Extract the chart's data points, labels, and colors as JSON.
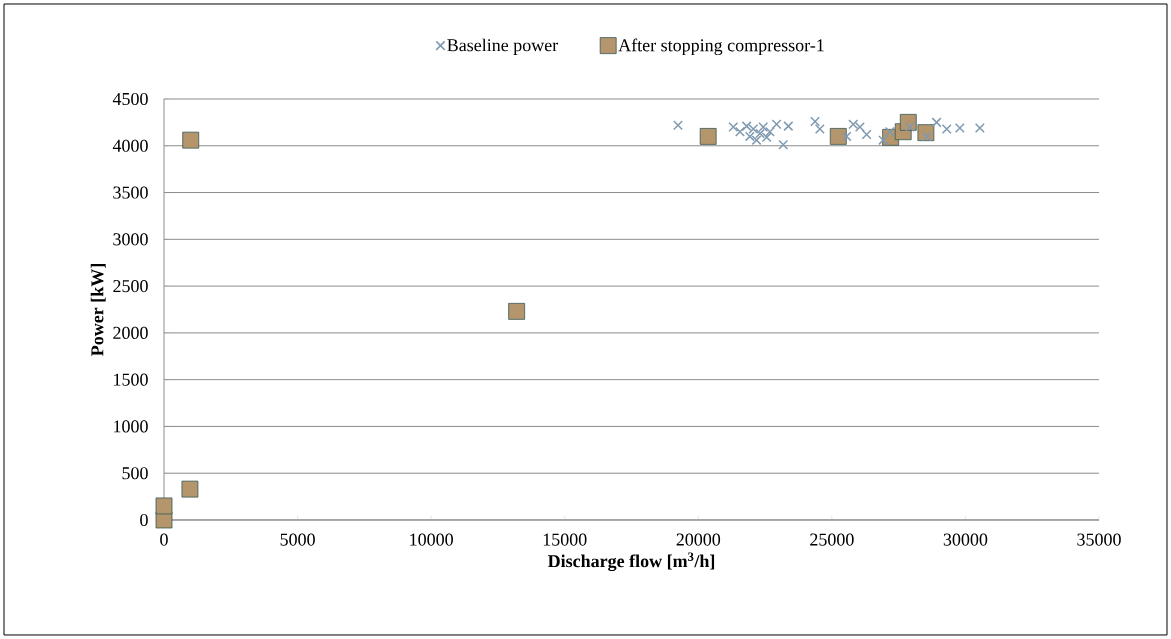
{
  "chart_data": {
    "type": "scatter",
    "xlabel": "Discharge flow [m$^{3}$/h]",
    "ylabel": "Power [kW]",
    "xlim": [
      0,
      35000
    ],
    "xticks": [
      0,
      5000,
      10000,
      15000,
      20000,
      25000,
      30000,
      35000
    ],
    "ylim": [
      0,
      4500
    ],
    "yticks": [
      0,
      500,
      1000,
      1500,
      2000,
      2500,
      3000,
      3500,
      4000,
      4500
    ],
    "grid": "y",
    "legend": "top",
    "series": [
      {
        "name": "Baseline power",
        "color": "#7f99b0",
        "marker": "cross",
        "x": [
          19240,
          21310,
          21560,
          21810,
          21930,
          22060,
          22180,
          22310,
          22430,
          22560,
          22680,
          22930,
          23180,
          23370,
          24370,
          24550,
          25550,
          25800,
          26050,
          26300,
          26920,
          27170,
          27920,
          28550,
          28920,
          29300,
          29790,
          30540
        ],
        "values": [
          4220,
          4200,
          4150,
          4210,
          4100,
          4180,
          4060,
          4130,
          4200,
          4090,
          4150,
          4230,
          4010,
          4210,
          4260,
          4180,
          4100,
          4230,
          4200,
          4120,
          4060,
          4150,
          4200,
          4100,
          4250,
          4180,
          4190,
          4190
        ]
      },
      {
        "name": "After stopping compressor-1",
        "color": "#b5956b",
        "marker": "square",
        "x": [
          0,
          0,
          970,
          1000,
          13200,
          20370,
          25240,
          27200,
          27670,
          27860,
          28520
        ],
        "values": [
          0,
          150,
          330,
          4060,
          2230,
          4100,
          4100,
          4090,
          4150,
          4250,
          4140
        ]
      }
    ]
  }
}
